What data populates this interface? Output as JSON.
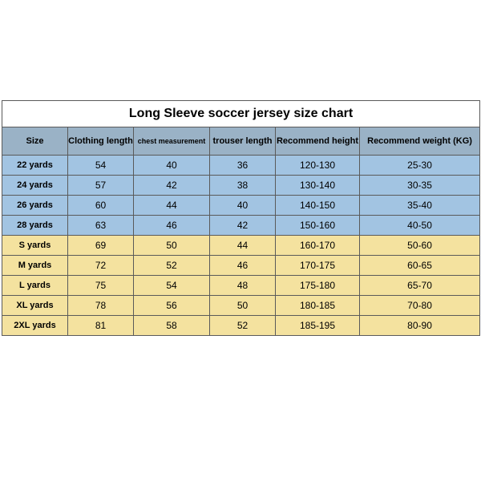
{
  "title": "Long Sleeve soccer jersey size chart",
  "columns": [
    "Size",
    "Clothing length",
    "chest measurement",
    "trouser length",
    "Recommend height",
    "Recommend weight (KG)"
  ],
  "colors": {
    "header_bg": "#9ab2c6",
    "blue_row": "#a2c4e2",
    "yellow_row": "#f4e29f",
    "border": "#5a5a5a",
    "title_bg": "#ffffff"
  },
  "rows": [
    {
      "group": "blue",
      "size": "22 yards",
      "clothing": "54",
      "chest": "40",
      "trouser": "36",
      "height": "120-130",
      "weight": "25-30"
    },
    {
      "group": "blue",
      "size": "24 yards",
      "clothing": "57",
      "chest": "42",
      "trouser": "38",
      "height": "130-140",
      "weight": "30-35"
    },
    {
      "group": "blue",
      "size": "26 yards",
      "clothing": "60",
      "chest": "44",
      "trouser": "40",
      "height": "140-150",
      "weight": "35-40"
    },
    {
      "group": "blue",
      "size": "28 yards",
      "clothing": "63",
      "chest": "46",
      "trouser": "42",
      "height": "150-160",
      "weight": "40-50"
    },
    {
      "group": "yellow",
      "size": "S yards",
      "clothing": "69",
      "chest": "50",
      "trouser": "44",
      "height": "160-170",
      "weight": "50-60"
    },
    {
      "group": "yellow",
      "size": "M yards",
      "clothing": "72",
      "chest": "52",
      "trouser": "46",
      "height": "170-175",
      "weight": "60-65"
    },
    {
      "group": "yellow",
      "size": "L yards",
      "clothing": "75",
      "chest": "54",
      "trouser": "48",
      "height": "175-180",
      "weight": "65-70"
    },
    {
      "group": "yellow",
      "size": "XL yards",
      "clothing": "78",
      "chest": "56",
      "trouser": "50",
      "height": "180-185",
      "weight": "70-80"
    },
    {
      "group": "yellow",
      "size": "2XL yards",
      "clothing": "81",
      "chest": "58",
      "trouser": "52",
      "height": "185-195",
      "weight": "80-90"
    }
  ]
}
